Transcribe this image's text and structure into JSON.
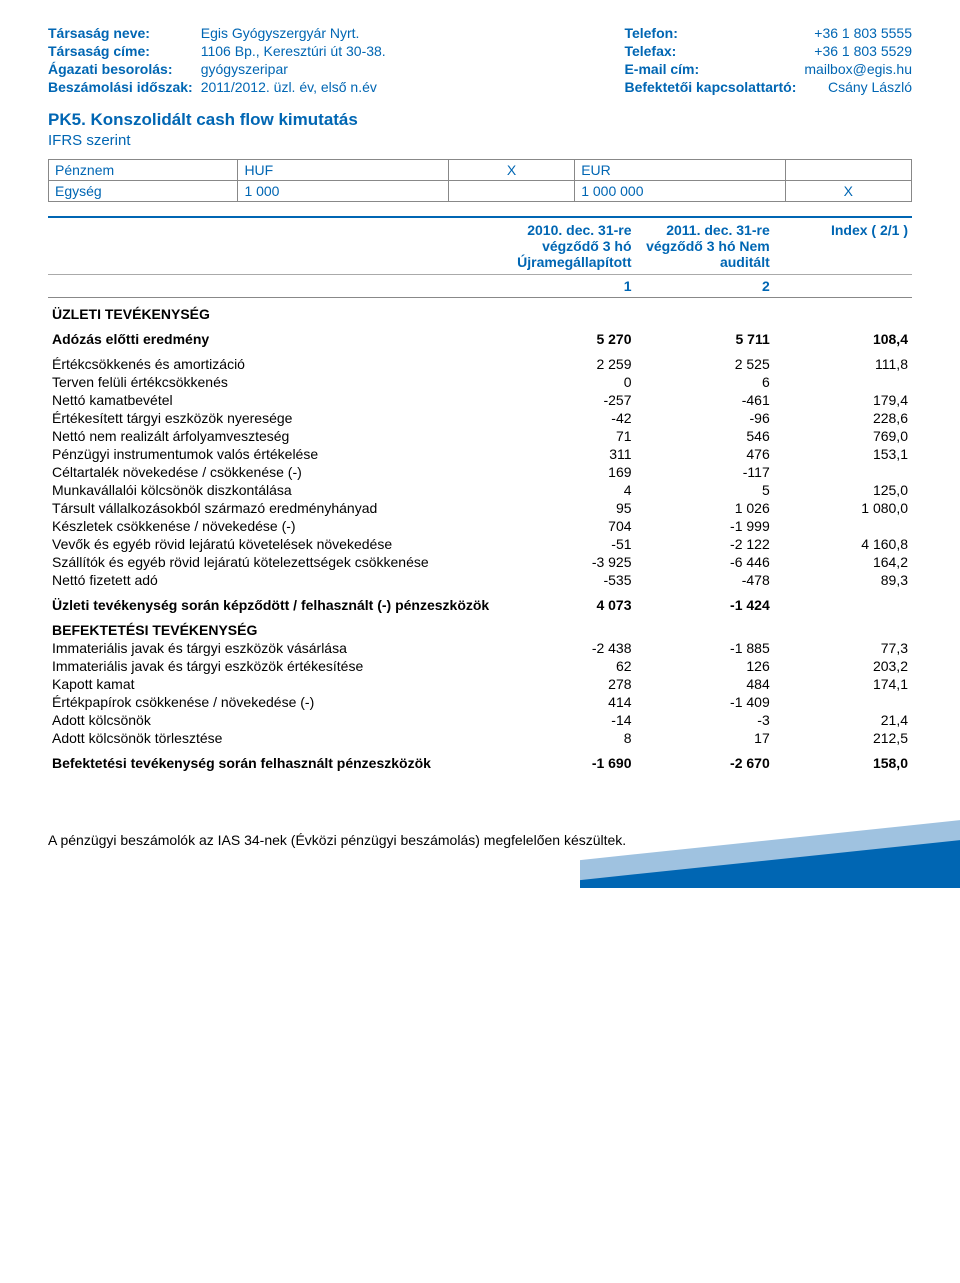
{
  "colors": {
    "brand": "#0066b3",
    "light": "#9fc2e0",
    "border": "#888888",
    "text": "#000000",
    "bg": "#ffffff"
  },
  "header": {
    "left": [
      {
        "label": "Társaság neve:",
        "value": "Egis Gyógyszergyár Nyrt."
      },
      {
        "label": "Társaság címe:",
        "value": "1106 Bp., Keresztúri út 30-38."
      },
      {
        "label": "Ágazati besorolás:",
        "value": "gyógyszeripar"
      },
      {
        "label": "Beszámolási időszak:",
        "value": "2011/2012. üzl. év, első n.év"
      }
    ],
    "right": [
      {
        "label": "Telefon:",
        "value": "+36 1 803 5555"
      },
      {
        "label": "Telefax:",
        "value": "+36 1 803 5529"
      },
      {
        "label": "E-mail cím:",
        "value": "mailbox@egis.hu"
      },
      {
        "label": "Befektetői kapcsolattartó:",
        "value": "Csány László"
      }
    ]
  },
  "title": {
    "main": "PK5. Konszolidált cash flow kimutatás",
    "sub": "IFRS szerint"
  },
  "units": {
    "rows": [
      {
        "label": "Pénznem",
        "a": "HUF",
        "ax": "X",
        "b": "EUR",
        "bx": ""
      },
      {
        "label": "Egység",
        "a": "1 000",
        "ax": "",
        "b": "1 000 000",
        "bx": "X"
      }
    ]
  },
  "table": {
    "head": {
      "c1": "2010. dec. 31-re végződő 3 hó Újramegállapított",
      "c2": "2011. dec. 31-re végződő 3 hó Nem auditált",
      "c3": "Index ( 2/1 )"
    },
    "numhead": {
      "a": "1",
      "b": "2"
    },
    "rows": [
      {
        "type": "section",
        "label": "ÜZLETI TEVÉKENYSÉG"
      },
      {
        "type": "bold",
        "label": "Adózás előtti eredmény",
        "a": "5 270",
        "b": "5 711",
        "c": "108,4",
        "gap": true
      },
      {
        "type": "plain",
        "label": "Értékcsökkenés és amortizáció",
        "a": "2 259",
        "b": "2 525",
        "c": "111,8",
        "gap": true
      },
      {
        "type": "plain",
        "label": "Terven felüli értékcsökkenés",
        "a": "0",
        "b": "6",
        "c": ""
      },
      {
        "type": "plain",
        "label": "Nettó kamatbevétel",
        "a": "-257",
        "b": "-461",
        "c": "179,4"
      },
      {
        "type": "plain",
        "label": "Értékesített tárgyi eszközök nyeresége",
        "a": "-42",
        "b": "-96",
        "c": "228,6"
      },
      {
        "type": "plain",
        "label": "Nettó nem realizált árfolyamveszteség",
        "a": "71",
        "b": "546",
        "c": "769,0"
      },
      {
        "type": "plain",
        "label": "Pénzügyi instrumentumok valós értékelése",
        "a": "311",
        "b": "476",
        "c": "153,1"
      },
      {
        "type": "plain",
        "label": "Céltartalék növekedése / csökkenése (-)",
        "a": "169",
        "b": "-117",
        "c": ""
      },
      {
        "type": "plain",
        "label": "Munkavállalói kölcsönök diszkontálása",
        "a": "4",
        "b": "5",
        "c": "125,0"
      },
      {
        "type": "plain",
        "label": "Társult vállalkozásokból származó eredményhányad",
        "a": "95",
        "b": "1 026",
        "c": "1 080,0"
      },
      {
        "type": "plain",
        "label": "Készletek csökkenése / növekedése (-)",
        "a": "704",
        "b": "-1 999",
        "c": ""
      },
      {
        "type": "plain",
        "label": "Vevők és egyéb rövid lejáratú követelések növekedése",
        "a": "-51",
        "b": "-2 122",
        "c": "4 160,8"
      },
      {
        "type": "plain",
        "label": "Szállítók és egyéb rövid lejáratú kötelezettségek csökkenése",
        "a": "-3 925",
        "b": "-6 446",
        "c": "164,2"
      },
      {
        "type": "plain",
        "label": "Nettó fizetett adó",
        "a": "-535",
        "b": "-478",
        "c": "89,3"
      },
      {
        "type": "bold",
        "label": "Üzleti tevékenység során képződött / felhasznált (-) pénzeszközök",
        "a": "4 073",
        "b": "-1 424",
        "c": "",
        "gap": true
      },
      {
        "type": "section",
        "label": "BEFEKTETÉSI TEVÉKENYSÉG"
      },
      {
        "type": "plain",
        "label": "Immateriális javak és tárgyi eszközök vásárlása",
        "a": "-2 438",
        "b": "-1 885",
        "c": "77,3"
      },
      {
        "type": "plain",
        "label": "Immateriális javak és tárgyi eszközök értékesítése",
        "a": "62",
        "b": "126",
        "c": "203,2"
      },
      {
        "type": "plain",
        "label": "Kapott kamat",
        "a": "278",
        "b": "484",
        "c": "174,1"
      },
      {
        "type": "plain",
        "label": "Értékpapírok csökkenése / növekedése (-)",
        "a": "414",
        "b": "-1 409",
        "c": ""
      },
      {
        "type": "plain",
        "label": "Adott kölcsönök",
        "a": "-14",
        "b": "-3",
        "c": "21,4"
      },
      {
        "type": "plain",
        "label": "Adott kölcsönök törlesztése",
        "a": "8",
        "b": "17",
        "c": "212,5"
      },
      {
        "type": "bold",
        "label": "Befektetési tevékenység során felhasznált pénzeszközök",
        "a": "-1 690",
        "b": "-2 670",
        "c": "158,0",
        "gap": true
      }
    ]
  },
  "footnote": "A pénzügyi beszámolók az IAS 34-nek (Évközi pénzügyi beszámolás) megfelelően készültek."
}
